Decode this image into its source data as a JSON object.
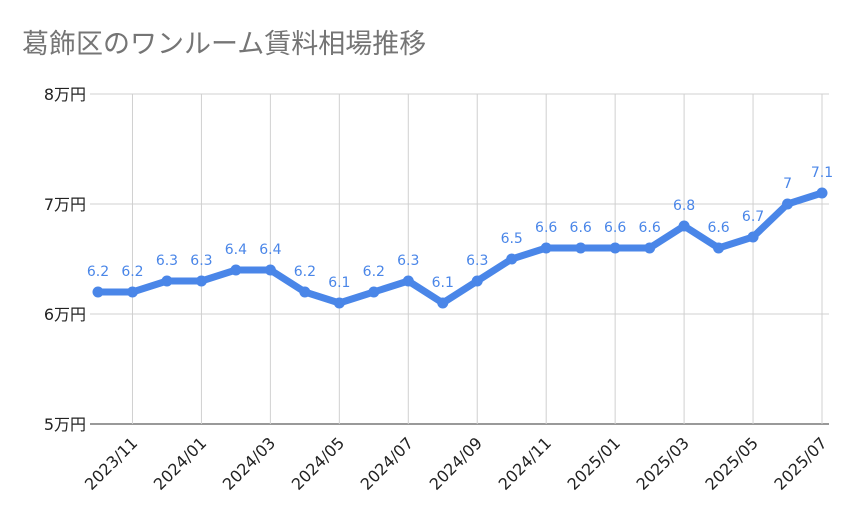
{
  "chart_data": {
    "type": "line",
    "title": "葛飾区のワンルーム賃料相場推移",
    "xlabel": "",
    "ylabel": "",
    "ylim": [
      5,
      8
    ],
    "y_ticks": [
      {
        "value": 8,
        "label": "8万円"
      },
      {
        "value": 7,
        "label": "7万円"
      },
      {
        "value": 6,
        "label": "6万円"
      },
      {
        "value": 5,
        "label": "5万円"
      }
    ],
    "x_tick_labels": [
      "2023/11",
      "2024/01",
      "2024/03",
      "2024/05",
      "2024/07",
      "2024/09",
      "2024/11",
      "2025/01",
      "2025/03",
      "2025/05",
      "2025/07"
    ],
    "x": [
      "2023/10",
      "2023/11",
      "2023/12",
      "2024/01",
      "2024/02",
      "2024/03",
      "2024/04",
      "2024/05",
      "2024/06",
      "2024/07",
      "2024/08",
      "2024/09",
      "2024/10",
      "2024/11",
      "2024/12",
      "2025/01",
      "2025/02",
      "2025/03",
      "2025/04",
      "2025/05",
      "2025/06",
      "2025/07"
    ],
    "series": [
      {
        "values": [
          6.2,
          6.2,
          6.3,
          6.3,
          6.4,
          6.4,
          6.2,
          6.1,
          6.2,
          6.3,
          6.1,
          6.3,
          6.5,
          6.6,
          6.6,
          6.6,
          6.6,
          6.8,
          6.6,
          6.7,
          7,
          7.1
        ],
        "data_labels": [
          "6.2",
          "6.2",
          "6.3",
          "6.3",
          "6.4",
          "6.4",
          "6.2",
          "6.1",
          "6.2",
          "6.3",
          "6.1",
          "6.3",
          "6.5",
          "6.6",
          "6.6",
          "6.6",
          "6.6",
          "6.8",
          "6.6",
          "6.7",
          "7",
          "7.1"
        ]
      }
    ],
    "line_color": "#4a86e8",
    "grid": true,
    "legend": "none"
  }
}
